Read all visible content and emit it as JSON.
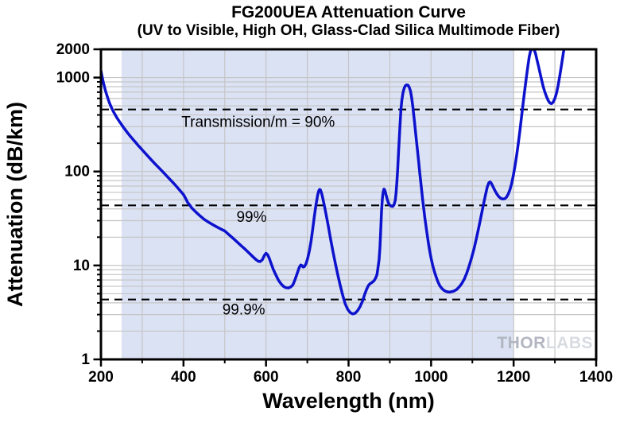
{
  "title": "FG200UEA Attenuation Curve",
  "subtitle": "(UV to Visible, High OH, Glass-Clad Silica Multimode Fiber)",
  "watermark": {
    "part1": "THOR",
    "part2": "LABS"
  },
  "colors": {
    "curve": "#0d12cd",
    "shaded_region": "#dbe2f4",
    "gridline": "#c5c5c5",
    "reference_line": "#000000",
    "text": "#000000",
    "watermark_thor": "#b2b6c0",
    "watermark_labs": "#d8dbe2",
    "background": "#ffffff"
  },
  "chart_data": {
    "type": "line",
    "title": "FG200UEA Attenuation Curve",
    "subtitle": "(UV to Visible, High OH, Glass-Clad Silica Multimode Fiber)",
    "xlabel": "Wavelength (nm)",
    "ylabel": "Attenuation (dB/km)",
    "x_scale": "linear",
    "y_scale": "log",
    "xlim": [
      200,
      1400
    ],
    "ylim": [
      1,
      2000
    ],
    "grid": true,
    "x_major_ticks": [
      200,
      400,
      600,
      800,
      1000,
      1200,
      1400
    ],
    "x_major_tick_labels": [
      "200",
      "400",
      "600",
      "800",
      "1000",
      "1200",
      "1400"
    ],
    "x_minor_ticks": [
      300,
      500,
      700,
      900,
      1100,
      1300
    ],
    "y_major_ticks": [
      1,
      10,
      100,
      1000,
      2000
    ],
    "y_labeled_ticks": [
      {
        "value": 2000,
        "label": "2000"
      },
      {
        "value": 1000,
        "label": "1000"
      },
      {
        "value": 100,
        "label": "100"
      },
      {
        "value": 10,
        "label": "10"
      },
      {
        "value": 1,
        "label": "1"
      }
    ],
    "shaded_region": {
      "x_start_nm": 250,
      "x_end_nm": 1200
    },
    "reference_lines": [
      {
        "db_per_km": 457.6,
        "label": "Transmission/m = 90%",
        "label_x_nm": 581,
        "label_y_db": 300
      },
      {
        "db_per_km": 43.6,
        "label": "99%",
        "label_x_nm": 565,
        "label_y_db": 29
      },
      {
        "db_per_km": 4.34,
        "label": "99.9%",
        "label_x_nm": 546,
        "label_y_db": 3.0
      }
    ],
    "series": [
      {
        "name": "FG200UEA attenuation",
        "units": {
          "x": "nm",
          "y": "dB/km"
        },
        "points": [
          [
            200,
            1180
          ],
          [
            203,
            1010
          ],
          [
            206,
            880
          ],
          [
            209,
            780
          ],
          [
            212,
            700
          ],
          [
            215,
            635
          ],
          [
            218,
            580
          ],
          [
            221,
            533
          ],
          [
            224,
            495
          ],
          [
            227,
            463
          ],
          [
            230,
            436
          ],
          [
            234,
            405
          ],
          [
            238,
            378
          ],
          [
            242,
            355
          ],
          [
            246,
            334
          ],
          [
            250,
            315
          ],
          [
            255,
            293
          ],
          [
            260,
            274
          ],
          [
            265,
            257
          ],
          [
            270,
            241
          ],
          [
            275,
            227
          ],
          [
            280,
            214
          ],
          [
            285,
            202
          ],
          [
            290,
            190
          ],
          [
            295,
            180
          ],
          [
            300,
            170
          ],
          [
            310,
            152
          ],
          [
            320,
            136
          ],
          [
            330,
            122
          ],
          [
            340,
            110
          ],
          [
            350,
            99
          ],
          [
            360,
            89
          ],
          [
            370,
            80
          ],
          [
            380,
            72
          ],
          [
            390,
            64
          ],
          [
            400,
            57
          ],
          [
            405,
            52
          ],
          [
            410,
            47
          ],
          [
            415,
            44
          ],
          [
            420,
            41
          ],
          [
            430,
            37
          ],
          [
            440,
            33.8
          ],
          [
            450,
            31
          ],
          [
            460,
            29
          ],
          [
            470,
            27.3
          ],
          [
            480,
            25.8
          ],
          [
            490,
            24.5
          ],
          [
            500,
            23.3
          ],
          [
            510,
            21.3
          ],
          [
            520,
            19.5
          ],
          [
            530,
            17.8
          ],
          [
            540,
            16.2
          ],
          [
            550,
            14.8
          ],
          [
            560,
            13.4
          ],
          [
            568,
            12.4
          ],
          [
            575,
            11.6
          ],
          [
            581,
            11.1
          ],
          [
            586,
            11.0
          ],
          [
            591,
            11.5
          ],
          [
            596,
            12.8
          ],
          [
            600,
            13.5
          ],
          [
            604,
            13.0
          ],
          [
            608,
            11.9
          ],
          [
            613,
            10.3
          ],
          [
            618,
            9.0
          ],
          [
            624,
            7.9
          ],
          [
            630,
            7.0
          ],
          [
            636,
            6.4
          ],
          [
            642,
            6.0
          ],
          [
            648,
            5.8
          ],
          [
            654,
            5.75
          ],
          [
            660,
            5.9
          ],
          [
            665,
            6.2
          ],
          [
            670,
            7.0
          ],
          [
            675,
            8.1
          ],
          [
            680,
            9.4
          ],
          [
            684,
            10.1
          ],
          [
            687,
            10.0
          ],
          [
            690,
            9.6
          ],
          [
            693,
            9.7
          ],
          [
            697,
            10.4
          ],
          [
            701,
            11.9
          ],
          [
            705,
            14.3
          ],
          [
            709,
            18
          ],
          [
            713,
            24
          ],
          [
            717,
            33
          ],
          [
            721,
            44
          ],
          [
            725,
            56
          ],
          [
            728,
            62.5
          ],
          [
            730,
            64.5
          ],
          [
            732,
            63.5
          ],
          [
            735,
            58
          ],
          [
            738,
            51
          ],
          [
            742,
            42
          ],
          [
            746,
            34
          ],
          [
            751,
            26
          ],
          [
            756,
            19.5
          ],
          [
            762,
            14.2
          ],
          [
            768,
            10.5
          ],
          [
            774,
            7.9
          ],
          [
            780,
            6.1
          ],
          [
            786,
            4.8
          ],
          [
            792,
            3.9
          ],
          [
            798,
            3.4
          ],
          [
            804,
            3.15
          ],
          [
            810,
            3.05
          ],
          [
            816,
            3.1
          ],
          [
            822,
            3.3
          ],
          [
            828,
            3.65
          ],
          [
            834,
            4.2
          ],
          [
            839,
            4.9
          ],
          [
            844,
            5.6
          ],
          [
            848,
            6.1
          ],
          [
            852,
            6.4
          ],
          [
            857,
            6.6
          ],
          [
            862,
            6.9
          ],
          [
            866,
            7.4
          ],
          [
            869,
            8.0
          ],
          [
            871,
            9.3
          ],
          [
            874,
            11.5
          ],
          [
            876,
            15.5
          ],
          [
            878,
            24
          ],
          [
            880,
            38
          ],
          [
            882,
            52
          ],
          [
            884,
            61
          ],
          [
            886,
            65
          ],
          [
            888,
            63
          ],
          [
            890,
            58.5
          ],
          [
            893,
            52
          ],
          [
            896,
            47
          ],
          [
            899,
            44.3
          ],
          [
            903,
            42.8
          ],
          [
            907,
            42.5
          ],
          [
            910,
            44
          ],
          [
            913,
            49
          ],
          [
            915,
            58
          ],
          [
            917,
            75
          ],
          [
            919,
            105
          ],
          [
            921,
            155
          ],
          [
            923,
            230
          ],
          [
            925,
            330
          ],
          [
            927,
            455
          ],
          [
            929,
            570
          ],
          [
            932,
            690
          ],
          [
            935,
            775
          ],
          [
            938,
            820
          ],
          [
            941,
            836
          ],
          [
            944,
            828
          ],
          [
            947,
            790
          ],
          [
            950,
            720
          ],
          [
            953,
            610
          ],
          [
            956,
            480
          ],
          [
            958,
            400
          ],
          [
            960,
            330
          ],
          [
            962,
            272
          ],
          [
            964,
            225
          ],
          [
            967,
            168
          ],
          [
            970,
            125
          ],
          [
            973,
            93
          ],
          [
            976,
            70
          ],
          [
            979,
            53
          ],
          [
            982,
            41
          ],
          [
            985,
            32
          ],
          [
            988,
            25.5
          ],
          [
            991,
            20.5
          ],
          [
            994,
            16.8
          ],
          [
            997,
            14
          ],
          [
            1000,
            12
          ],
          [
            1004,
            10
          ],
          [
            1008,
            8.6
          ],
          [
            1012,
            7.6
          ],
          [
            1016,
            6.8
          ],
          [
            1021,
            6.1
          ],
          [
            1026,
            5.7
          ],
          [
            1032,
            5.4
          ],
          [
            1038,
            5.25
          ],
          [
            1044,
            5.2
          ],
          [
            1050,
            5.25
          ],
          [
            1056,
            5.35
          ],
          [
            1062,
            5.55
          ],
          [
            1068,
            5.9
          ],
          [
            1074,
            6.4
          ],
          [
            1080,
            7.1
          ],
          [
            1086,
            8.2
          ],
          [
            1092,
            9.8
          ],
          [
            1098,
            12
          ],
          [
            1104,
            15
          ],
          [
            1110,
            19.5
          ],
          [
            1116,
            26
          ],
          [
            1122,
            35
          ],
          [
            1127,
            45
          ],
          [
            1132,
            57
          ],
          [
            1136,
            68
          ],
          [
            1140,
            76
          ],
          [
            1143,
            77.5
          ],
          [
            1146,
            75
          ],
          [
            1150,
            69
          ],
          [
            1154,
            63.5
          ],
          [
            1159,
            58
          ],
          [
            1164,
            54
          ],
          [
            1169,
            51.8
          ],
          [
            1174,
            51
          ],
          [
            1179,
            51.5
          ],
          [
            1183,
            53.5
          ],
          [
            1187,
            57.5
          ],
          [
            1191,
            64
          ],
          [
            1195,
            74
          ],
          [
            1199,
            89
          ],
          [
            1203,
            112
          ],
          [
            1207,
            145
          ],
          [
            1211,
            195
          ],
          [
            1215,
            268
          ],
          [
            1219,
            375
          ],
          [
            1223,
            530
          ],
          [
            1227,
            740
          ],
          [
            1231,
            1020
          ],
          [
            1235,
            1360
          ],
          [
            1238,
            1680
          ],
          [
            1241,
            1920
          ],
          [
            1244,
            2030
          ],
          [
            1247,
            2040
          ],
          [
            1250,
            1965
          ],
          [
            1253,
            1810
          ],
          [
            1256,
            1590
          ],
          [
            1260,
            1340
          ],
          [
            1264,
            1120
          ],
          [
            1268,
            935
          ],
          [
            1272,
            795
          ],
          [
            1276,
            695
          ],
          [
            1280,
            622
          ],
          [
            1284,
            568
          ],
          [
            1288,
            536
          ],
          [
            1292,
            528
          ],
          [
            1296,
            548
          ],
          [
            1300,
            598
          ],
          [
            1304,
            688
          ],
          [
            1308,
            828
          ],
          [
            1312,
            1050
          ],
          [
            1316,
            1360
          ],
          [
            1320,
            1780
          ],
          [
            1324,
            2250
          ]
        ]
      }
    ],
    "legend": false
  }
}
